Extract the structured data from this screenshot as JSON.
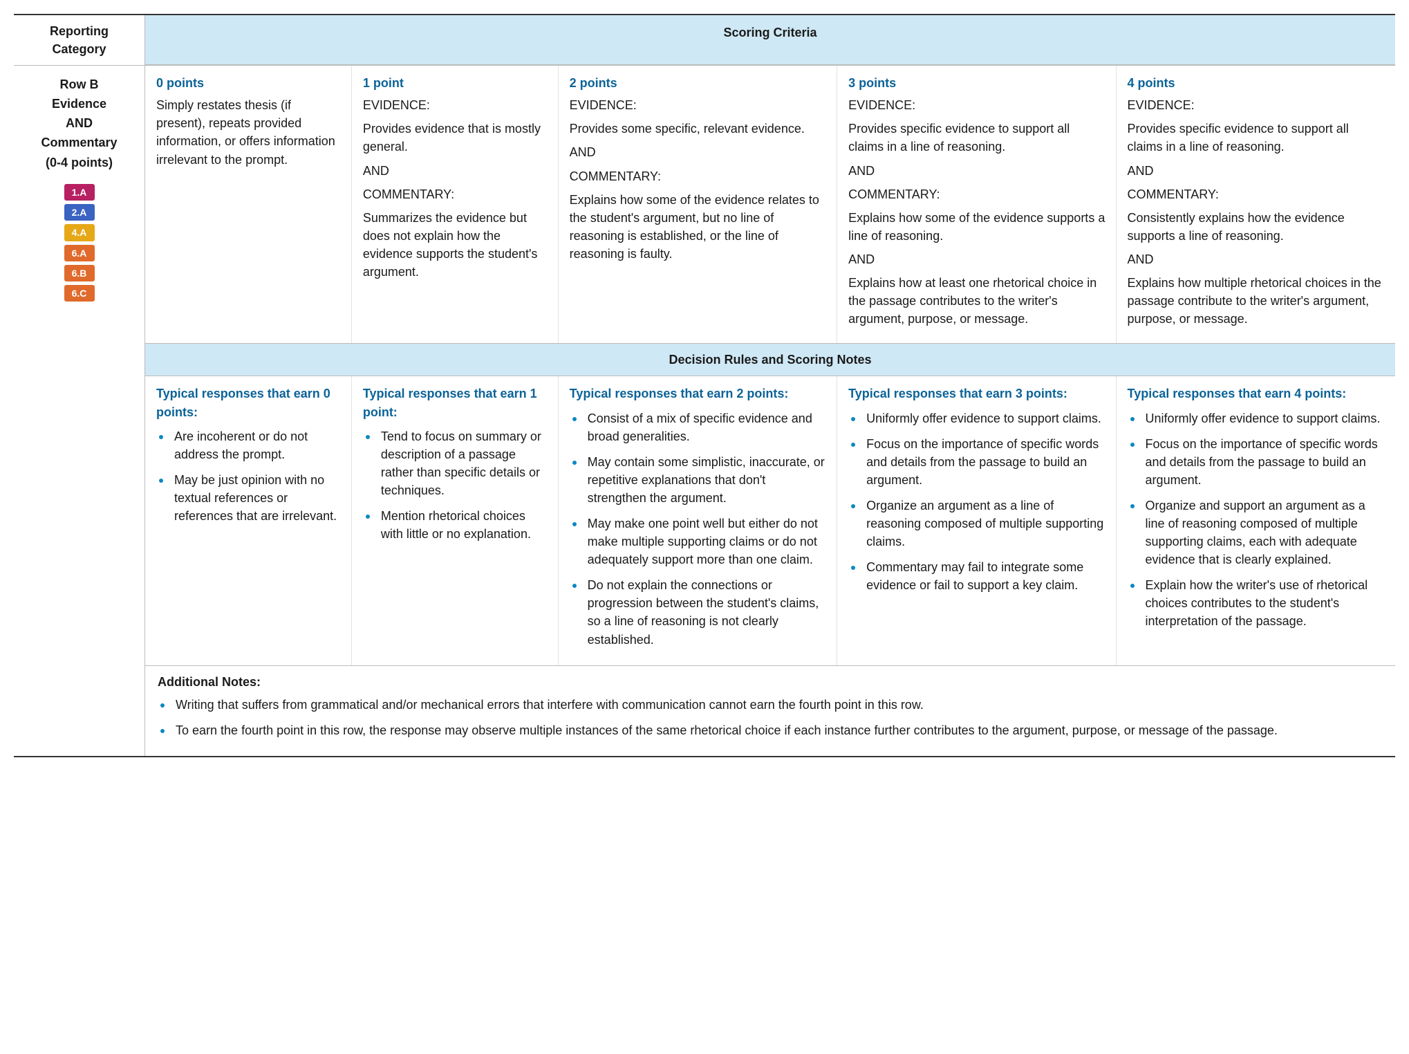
{
  "header": {
    "reporting_category": "Reporting Category",
    "scoring_criteria": "Scoring Criteria"
  },
  "category": {
    "line1": "Row B",
    "line2": "Evidence",
    "line3": "AND",
    "line4": "Commentary",
    "line5": "(0-4 points)"
  },
  "skill_tags": [
    {
      "label": "1.A",
      "bg": "#b72062"
    },
    {
      "label": "2.A",
      "bg": "#3a63c2"
    },
    {
      "label": "4.A",
      "bg": "#e6a817"
    },
    {
      "label": "6.A",
      "bg": "#e06a2b"
    },
    {
      "label": "6.B",
      "bg": "#e06a2b"
    },
    {
      "label": "6.C",
      "bg": "#e06a2b"
    }
  ],
  "criteria": [
    {
      "points": "0 points",
      "blocks": [
        "Simply restates thesis (if present), repeats provided information, or offers information irrelevant to the prompt."
      ]
    },
    {
      "points": "1 point",
      "blocks": [
        "EVIDENCE:",
        "Provides evidence that is mostly general.",
        "AND",
        "COMMENTARY:",
        "Summarizes the evidence but does not explain how the evidence supports the student's argument."
      ]
    },
    {
      "points": "2 points",
      "blocks": [
        "EVIDENCE:",
        "Provides some specific, relevant evidence.",
        "AND",
        "COMMENTARY:",
        "Explains how some of the evidence relates to the student's argument, but no line of reasoning is established, or the line of reasoning is faulty."
      ]
    },
    {
      "points": "3 points",
      "blocks": [
        "EVIDENCE:",
        "Provides specific evidence to support all claims in a line of reasoning.",
        "AND",
        "COMMENTARY:",
        "Explains how some of the evidence supports a line of reasoning.",
        "AND",
        "Explains how at least one rhetorical choice in the passage contributes to the writer's argument, purpose, or message."
      ]
    },
    {
      "points": "4 points",
      "blocks": [
        "EVIDENCE:",
        "Provides specific evidence to support all claims in a line of reasoning.",
        "AND",
        "COMMENTARY:",
        "Consistently explains how the evidence supports a line of reasoning.",
        "AND",
        "Explains how multiple rhetorical choices in the passage contribute to the writer's argument, purpose, or message."
      ]
    }
  ],
  "decision_bar": "Decision Rules and Scoring Notes",
  "typical": [
    {
      "head": "Typical responses that earn 0 points:",
      "items": [
        "Are incoherent or do not address the prompt.",
        "May be just opinion with no textual references or references that are irrelevant."
      ]
    },
    {
      "head": "Typical responses that earn 1 point:",
      "items": [
        "Tend to focus on summary or description of a passage rather than specific details or techniques.",
        "Mention rhetorical choices with little or no explanation."
      ]
    },
    {
      "head": "Typical responses that earn 2 points:",
      "items": [
        "Consist of a mix of specific evidence and broad generalities.",
        "May contain some simplistic, inaccurate, or repetitive explanations that don't strengthen the argument.",
        "May make one point well but either do not make multiple supporting claims or do not adequately support more than one claim.",
        "Do not explain the connections or progression between the student's claims, so a line of reasoning is not clearly established."
      ]
    },
    {
      "head": "Typical responses that earn 3 points:",
      "items": [
        "Uniformly offer evidence to support claims.",
        "Focus on the importance of specific words and details from the passage to build an argument.",
        "Organize an argument as a line of reasoning composed of multiple supporting claims.",
        "Commentary may fail to integrate some evidence or fail to support a key claim."
      ]
    },
    {
      "head": "Typical responses that earn 4 points:",
      "items": [
        "Uniformly offer evidence to support claims.",
        "Focus on the importance of specific words and details from the passage to build an argument.",
        "Organize and support an argument as a line of reasoning composed of multiple supporting claims, each with adequate evidence that is clearly explained.",
        "Explain how the writer's use of rhetorical choices contributes to the student's interpretation of the passage."
      ]
    }
  ],
  "additional": {
    "title": "Additional Notes:",
    "items": [
      "Writing that suffers from grammatical and/or mechanical errors that interfere with communication cannot earn the fourth point in this row.",
      "To earn the fourth point in this row, the response may observe multiple instances of the same rhetorical choice if each instance further contributes to the argument, purpose, or message of the passage."
    ]
  },
  "colors": {
    "header_bg": "#cfe8f5",
    "accent_text": "#0b6398",
    "bullet": "#0b88c2"
  }
}
